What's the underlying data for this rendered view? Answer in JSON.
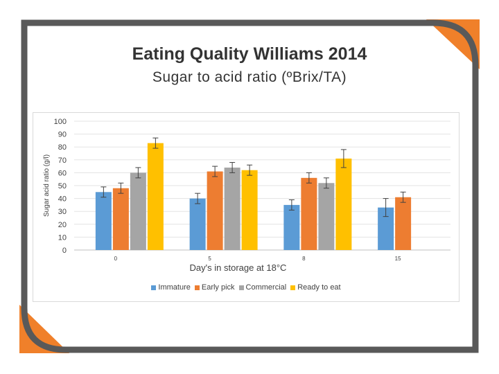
{
  "slide": {
    "title": "Eating Quality Williams 2014",
    "subtitle": "Sugar to acid ratio (ºBrix/TA)",
    "colors": {
      "frame": "#595959",
      "accent": "#f0802a"
    }
  },
  "chart_data": {
    "type": "bar",
    "title": "Sugar to acid ratio (ºBrix/TA)",
    "xlabel": "Day's in storage at 18°C",
    "ylabel": "Sugar acid ratio (g/l)",
    "ylim": [
      0,
      100
    ],
    "yticks": [
      "0",
      "10",
      "20",
      "30",
      "40",
      "50",
      "60",
      "70",
      "80",
      "90",
      "100"
    ],
    "categories": [
      "0",
      "5",
      "8",
      "15"
    ],
    "legend_position": "bottom",
    "gridlines": true,
    "series": [
      {
        "name": "Immature",
        "color": "#5b9bd5",
        "values": [
          45,
          40,
          35,
          33
        ],
        "errors": [
          4,
          4,
          4,
          7
        ]
      },
      {
        "name": "Early pick",
        "color": "#ed7d31",
        "values": [
          48,
          61,
          56,
          41
        ],
        "errors": [
          4,
          4,
          4,
          4
        ]
      },
      {
        "name": "Commercial",
        "color": "#a5a5a5",
        "values": [
          60,
          64,
          52,
          null
        ],
        "errors": [
          4,
          4,
          4,
          null
        ]
      },
      {
        "name": "Ready to eat",
        "color": "#ffc000",
        "values": [
          83,
          62,
          71,
          null
        ],
        "errors": [
          4,
          4,
          7,
          null
        ]
      }
    ]
  }
}
